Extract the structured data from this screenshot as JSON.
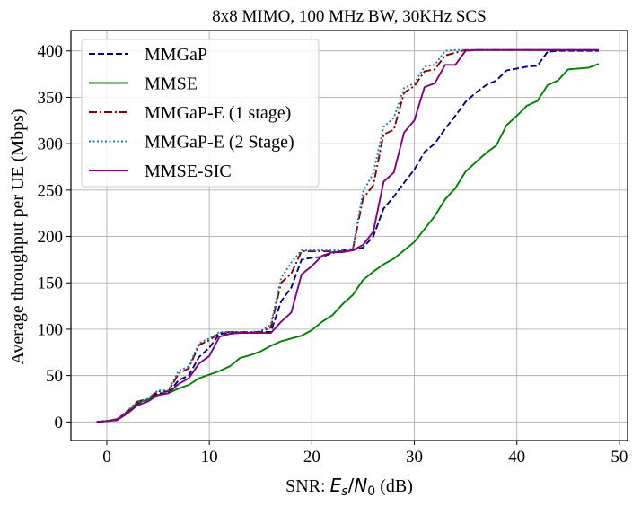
{
  "chart_data": {
    "type": "line",
    "title": "8x8 MIMO, 100 MHz BW, 30KHz SCS",
    "xlabel_prefix": "SNR: ",
    "xlabel_math_E": "E",
    "xlabel_math_s": "s",
    "xlabel_math_slash": "/",
    "xlabel_math_N": "N",
    "xlabel_math_0": "0",
    "xlabel_suffix": " (dB)",
    "ylabel": "Average throughput per UE (Mbps)",
    "xlim": [
      -3.5,
      50.8
    ],
    "ylim": [
      -20,
      422
    ],
    "xticks": [
      0,
      10,
      20,
      30,
      40,
      50
    ],
    "yticks": [
      0,
      50,
      100,
      150,
      200,
      250,
      300,
      350,
      400
    ],
    "grid": true,
    "legend_position": "top-left",
    "series": [
      {
        "name": "MMGaP",
        "color": "#00007f",
        "style": "dashed",
        "x": [
          -1,
          0,
          1,
          2,
          3,
          4,
          5,
          6,
          7,
          8,
          9,
          10,
          11,
          12,
          13,
          14,
          15,
          16,
          17,
          18,
          19,
          20,
          21,
          22,
          23,
          24,
          25,
          26,
          27,
          28,
          29,
          30,
          31,
          32,
          33,
          34,
          35,
          36,
          37,
          38,
          39,
          40,
          41,
          42,
          43,
          44,
          45,
          46,
          47,
          48
        ],
        "y": [
          0,
          1,
          2,
          10,
          20,
          24,
          31,
          31,
          45,
          50,
          70,
          80,
          95,
          96,
          96,
          96,
          97,
          97,
          130,
          145,
          175,
          177,
          178,
          182,
          185,
          185,
          188,
          200,
          230,
          243,
          258,
          272,
          291,
          300,
          316,
          330,
          345,
          355,
          363,
          368,
          379,
          381,
          383,
          384,
          399,
          400,
          400,
          400,
          400,
          400
        ]
      },
      {
        "name": "MMSE",
        "color": "#008000",
        "style": "solid",
        "x": [
          -1,
          0,
          1,
          2,
          3,
          4,
          5,
          6,
          7,
          8,
          9,
          10,
          11,
          12,
          13,
          14,
          15,
          16,
          17,
          18,
          19,
          20,
          21,
          22,
          23,
          24,
          25,
          26,
          27,
          28,
          29,
          30,
          31,
          32,
          33,
          34,
          35,
          36,
          37,
          38,
          39,
          40,
          41,
          42,
          43,
          44,
          45,
          46,
          47,
          48
        ],
        "y": [
          0,
          1,
          3,
          10,
          21,
          24,
          29,
          31,
          36,
          40,
          47,
          51,
          55,
          60,
          69,
          72,
          76,
          82,
          87,
          90,
          93,
          99,
          108,
          115,
          127,
          137,
          153,
          162,
          170,
          176,
          185,
          194,
          208,
          222,
          240,
          252,
          270,
          280,
          290,
          298,
          320,
          330,
          341,
          346,
          363,
          368,
          380,
          381,
          382,
          386
        ]
      },
      {
        "name": "MMGaP-E (1 stage)",
        "color": "#800000",
        "style": "dashdot",
        "x": [
          -1,
          0,
          1,
          2,
          3,
          4,
          5,
          6,
          7,
          8,
          9,
          10,
          11,
          12,
          13,
          14,
          15,
          16,
          17,
          18,
          19,
          20,
          21,
          22,
          23,
          24,
          25,
          26,
          27,
          28,
          29,
          30,
          31,
          32,
          33,
          34,
          35,
          36,
          37,
          38,
          39,
          40,
          41,
          42,
          43,
          44,
          45,
          46,
          47,
          48
        ],
        "y": [
          0,
          1,
          3,
          11,
          22,
          25,
          33,
          33,
          52,
          58,
          83,
          88,
          96,
          97,
          97,
          97,
          97,
          102,
          150,
          160,
          184,
          184,
          184,
          184,
          184,
          186,
          241,
          255,
          310,
          315,
          355,
          362,
          378,
          380,
          395,
          398,
          401,
          401,
          401,
          401,
          401,
          401,
          401,
          401,
          401,
          401,
          401,
          401,
          401,
          401
        ]
      },
      {
        "name": "MMGaP-E (2 Stage)",
        "color": "#1f77b4",
        "style": "dotted",
        "x": [
          -1,
          0,
          1,
          2,
          3,
          4,
          5,
          6,
          7,
          8,
          9,
          10,
          11,
          12,
          13,
          14,
          15,
          16,
          17,
          18,
          19,
          20,
          21,
          22,
          23,
          24,
          25,
          26,
          27,
          28,
          29,
          30,
          31,
          32,
          33,
          34,
          35,
          36,
          37,
          38,
          39,
          40,
          41,
          42,
          43,
          44,
          45,
          46,
          47,
          48
        ],
        "y": [
          0,
          1,
          3,
          12,
          22,
          25,
          34,
          34,
          55,
          60,
          85,
          90,
          97,
          97,
          97,
          97,
          98,
          105,
          155,
          172,
          185,
          185,
          185,
          185,
          185,
          187,
          248,
          268,
          318,
          328,
          360,
          365,
          383,
          385,
          400,
          401,
          401,
          401,
          401,
          401,
          401,
          401,
          401,
          401,
          401,
          401,
          401,
          401,
          401,
          401
        ]
      },
      {
        "name": "MMSE-SIC",
        "color": "#800080",
        "style": "solid",
        "x": [
          -1,
          0,
          1,
          2,
          3,
          4,
          5,
          6,
          7,
          8,
          9,
          10,
          11,
          12,
          13,
          14,
          15,
          16,
          17,
          18,
          19,
          20,
          21,
          22,
          23,
          24,
          25,
          26,
          27,
          28,
          29,
          30,
          31,
          32,
          33,
          34,
          35,
          36,
          37,
          38,
          39,
          40,
          41,
          42,
          43,
          44,
          45,
          46,
          47,
          48
        ],
        "y": [
          0,
          1,
          2,
          9,
          18,
          22,
          29,
          31,
          41,
          47,
          63,
          71,
          92,
          95,
          96,
          96,
          96,
          96,
          108,
          118,
          159,
          168,
          179,
          183,
          183,
          185,
          191,
          205,
          259,
          269,
          312,
          325,
          361,
          365,
          385,
          385,
          400,
          401,
          401,
          401,
          401,
          401,
          401,
          401,
          401,
          401,
          401,
          401,
          401,
          401
        ]
      }
    ]
  }
}
